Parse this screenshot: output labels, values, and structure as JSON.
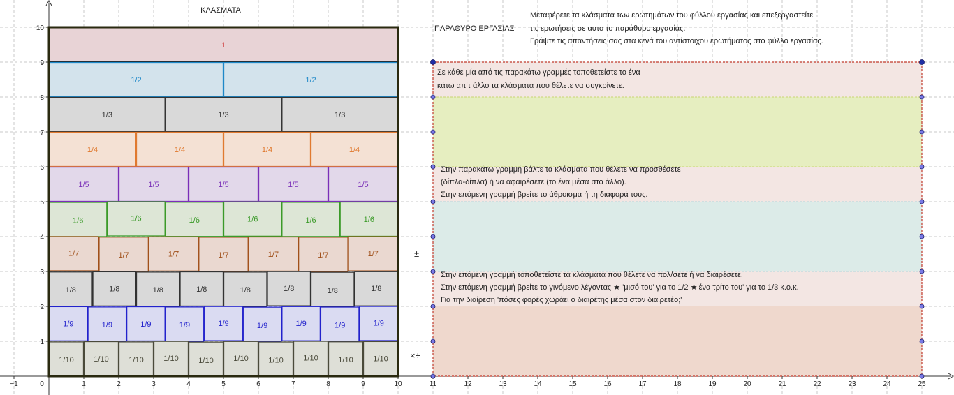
{
  "app": {
    "title": "ΚΛΑΣΜΑΤΑ",
    "work_window_label": "ΠΑΡΑΘΥΡΟ ΕΡΓΑΣΙΑΣ"
  },
  "instructions": [
    "Μεταφέρετε τα κλάσματα των ερωτημάτων του φύλλου εργασίας και επεξεργαστείτε",
    "τις ερωτήσεις σε αυτο το παράθυρο εργασίας.",
    "Γράψτε τις απαντήσεις σας στα κενά του αντίστοιχου ερωτήματος στο φύλλο εργασίας."
  ],
  "axes": {
    "x_ticks": [
      "−1",
      "0",
      "1",
      "2",
      "3",
      "4",
      "5",
      "6",
      "7",
      "8",
      "9",
      "10",
      "11",
      "12",
      "13",
      "14",
      "15",
      "16",
      "17",
      "18",
      "19",
      "20",
      "21",
      "22",
      "23",
      "24",
      "25"
    ],
    "y_ticks": [
      "1",
      "2",
      "3",
      "4",
      "5",
      "6",
      "7",
      "8",
      "9",
      "10"
    ]
  },
  "fraction_rows": [
    {
      "label": "1",
      "count": 1,
      "fill": "#e8d3d6",
      "stroke": "#222222",
      "text": "#d04040",
      "row": 9
    },
    {
      "label": "1/2",
      "count": 2,
      "fill": "#d3e3ec",
      "stroke": "#1e88c8",
      "text": "#1e88c8",
      "row": 8
    },
    {
      "label": "1/3",
      "count": 3,
      "fill": "#d9d9d9",
      "stroke": "#333333",
      "text": "#333333",
      "row": 7
    },
    {
      "label": "1/4",
      "count": 4,
      "fill": "#f4e1d4",
      "stroke": "#e07a30",
      "text": "#e07a30",
      "row": 6
    },
    {
      "label": "1/5",
      "count": 5,
      "fill": "#e2d8ea",
      "stroke": "#7a2fb8",
      "text": "#7a2fb8",
      "row": 5
    },
    {
      "label": "1/6",
      "count": 6,
      "fill": "#dde6d6",
      "stroke": "#3a9a28",
      "text": "#3a9a28",
      "row": 4
    },
    {
      "label": "1/7",
      "count": 7,
      "fill": "#ead8d0",
      "stroke": "#a0501a",
      "text": "#a0501a",
      "row": 3
    },
    {
      "label": "1/8",
      "count": 8,
      "fill": "#d9d9d9",
      "stroke": "#333333",
      "text": "#333333",
      "row": 2
    },
    {
      "label": "1/9",
      "count": 9,
      "fill": "#dadbf2",
      "stroke": "#2222cc",
      "text": "#2222cc",
      "row": 1
    },
    {
      "label": "1/10",
      "count": 10,
      "fill": "#dedfd7",
      "stroke": "#4a4a3a",
      "text": "#4a4a3a",
      "row": 0
    }
  ],
  "work_sections": [
    {
      "lines": [
        "Σε κάθε μία από τις παρακάτω γραμμές τοποθετείστε το ένα",
        "κάτω απ'τ άλλο τα κλάσματα που θέλετε να συγκρίνετε."
      ]
    },
    {
      "lines": [
        "Στην παρακάτω γραμμή βάλτε τα κλάσματα που θέλετε να προσθέσετε",
        "(δίπλα-δίπλα) ή να αφαιρέσετε (το ένα μέσα στο άλλο).",
        "Στην επόμενη γραμμή βρείτε το άθροισμα ή τη διαφορά τους."
      ]
    },
    {
      "lines": [
        "Στην επόμενη γραμμή τοποθετείστε τα κλάσματα που θέλετε να πολ/σετε ή να διαιρέσετε.",
        "Στην επόμενη γραμμή βρείτε το γινόμενο λέγοντας ★ 'μισό του' για το 1/2 ★'ένα τρίτο του' για το 1/3 κ.ο.κ.",
        "Για την διαίρεση 'πόσες φορές χωράει ο διαιρέτης μέσα στον διαιρετέο;'"
      ]
    }
  ],
  "operation_symbols": {
    "plus_minus": "±",
    "times_divide": "×÷"
  },
  "colors": {
    "grid": "#c8c8c8",
    "axis": "#333333",
    "panel_border": "#c0392b",
    "panel_bg": "#f3e6e3",
    "compare_zone": "#e6eec0",
    "sum_zone": "#dcebe8",
    "product_zone": "#efd8cd",
    "point_fill": "#7a7ae6",
    "point_fill_dark": "#1f2fa6"
  }
}
